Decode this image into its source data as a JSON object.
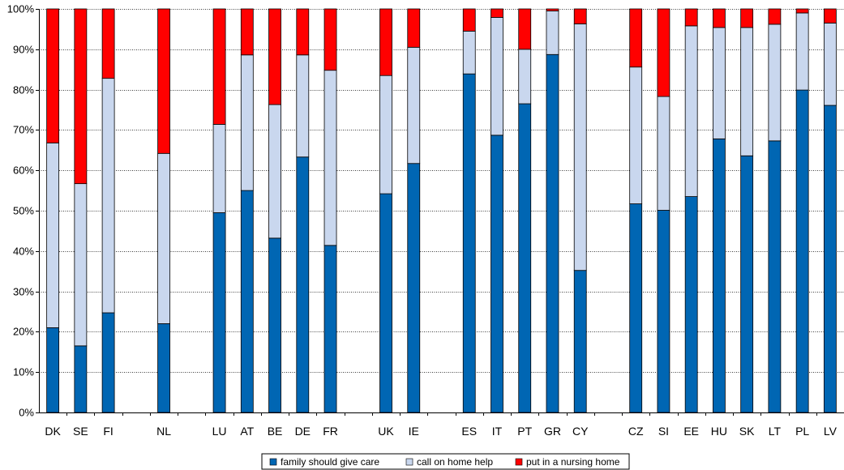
{
  "chart_data": {
    "type": "bar",
    "stacked": true,
    "percent_stacked": true,
    "title": "",
    "xlabel": "",
    "ylabel": "",
    "ylim": [
      0,
      100
    ],
    "yticks": [
      "0%",
      "10%",
      "20%",
      "30%",
      "40%",
      "50%",
      "60%",
      "70%",
      "80%",
      "90%",
      "100%"
    ],
    "grid": "horizontal-dotted",
    "legend_position": "bottom",
    "categories": [
      "DK",
      "SE",
      "FI",
      "",
      "NL",
      "",
      "LU",
      "AT",
      "BE",
      "DE",
      "FR",
      "",
      "UK",
      "IE",
      "",
      "ES",
      "IT",
      "PT",
      "GR",
      "CY",
      "",
      "CZ",
      "SI",
      "EE",
      "HU",
      "SK",
      "LT",
      "PL",
      "LV"
    ],
    "series": [
      {
        "name": "family should give care",
        "color": "#0066B3",
        "values": [
          21,
          16.5,
          24.7,
          null,
          22,
          null,
          49.5,
          55,
          43.2,
          63.3,
          41.4,
          null,
          54.2,
          61.7,
          null,
          83.9,
          68.7,
          76.5,
          88.7,
          35.2,
          null,
          51.7,
          50.1,
          53.5,
          67.8,
          63.6,
          67.3,
          79.9,
          76.1
        ]
      },
      {
        "name": "call on home help",
        "color": "#C9D7EE",
        "values": [
          45.8,
          40.2,
          58.1,
          null,
          42.2,
          null,
          21.9,
          33.6,
          33.1,
          25.3,
          43.4,
          null,
          29.3,
          28.8,
          null,
          10.6,
          29.2,
          13.5,
          10.8,
          61.1,
          null,
          33.9,
          28.2,
          42.3,
          27.6,
          31.8,
          28.9,
          19.1,
          20.4
        ]
      },
      {
        "name": "put in a nursing home",
        "color": "#FF0000",
        "values": [
          33.2,
          43.3,
          17.2,
          null,
          35.8,
          null,
          28.6,
          11.4,
          23.7,
          11.4,
          15.2,
          null,
          16.5,
          9.5,
          null,
          5.5,
          2.1,
          10,
          0.5,
          3.7,
          null,
          14.4,
          21.7,
          4.2,
          4.6,
          4.6,
          3.8,
          1,
          3.5
        ]
      }
    ]
  }
}
